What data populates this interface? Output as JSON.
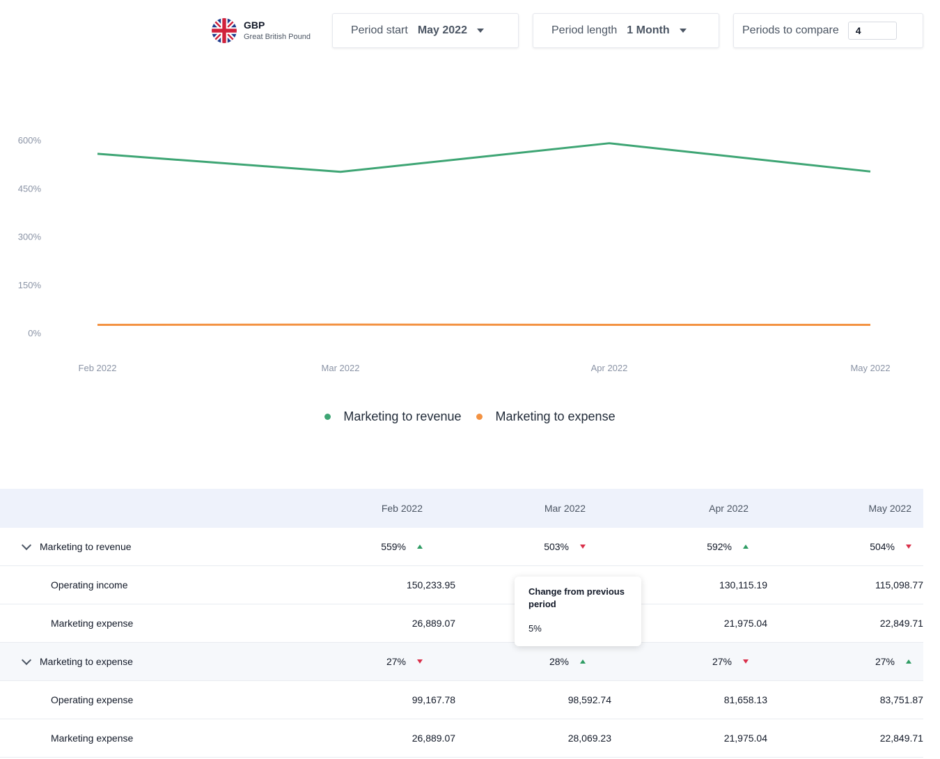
{
  "currency": {
    "code": "GBP",
    "name": "Great British Pound",
    "icon": "uk-flag-icon"
  },
  "controls": {
    "period_start": {
      "label": "Period start",
      "value": "May 2022"
    },
    "period_length": {
      "label": "Period length",
      "value": "1 Month"
    },
    "periods_to_compare": {
      "label": "Periods to compare",
      "value": "4"
    }
  },
  "colors": {
    "green": "#3ea574",
    "orange": "#f39242",
    "up": "#2e9c63",
    "down": "#d9304a"
  },
  "chart_data": {
    "type": "line",
    "x": [
      "Feb 2022",
      "Mar 2022",
      "Apr 2022",
      "May 2022"
    ],
    "yticks": [
      "0%",
      "150%",
      "300%",
      "450%",
      "600%"
    ],
    "ylim": [
      0,
      600
    ],
    "grid": false,
    "legend_position": "bottom",
    "series": [
      {
        "name": "Marketing to revenue",
        "values": [
          559,
          503,
          592,
          504
        ],
        "color": "#3ea574"
      },
      {
        "name": "Marketing to expense",
        "values": [
          27,
          28,
          27,
          27
        ],
        "color": "#f39242"
      }
    ]
  },
  "table": {
    "headers": [
      "Feb 2022",
      "Mar 2022",
      "Apr 2022",
      "May 2022"
    ],
    "rows": [
      {
        "name": "Marketing to revenue",
        "group": true,
        "cells": [
          "559%",
          "503%",
          "592%",
          "504%"
        ],
        "trends": [
          "up",
          "down",
          "up",
          "down"
        ]
      },
      {
        "name": "Operating income",
        "group": false,
        "cells": [
          "150,233.95",
          "",
          "130,115.19",
          "115,098.77"
        ]
      },
      {
        "name": "Marketing expense",
        "group": false,
        "cells": [
          "26,889.07",
          "",
          "21,975.04",
          "22,849.71"
        ]
      },
      {
        "name": "Marketing to expense",
        "group": true,
        "cells": [
          "27%",
          "28%",
          "27%",
          "27%"
        ],
        "trends": [
          "down",
          "up",
          "down",
          "up"
        ]
      },
      {
        "name": "Operating expense",
        "group": false,
        "cells": [
          "99,167.78",
          "98,592.74",
          "81,658.13",
          "83,751.87"
        ]
      },
      {
        "name": "Marketing expense",
        "group": false,
        "cells": [
          "26,889.07",
          "28,069.23",
          "21,975.04",
          "22,849.71"
        ]
      }
    ]
  },
  "tooltip": {
    "title": "Change from previous period",
    "value": "5%"
  }
}
